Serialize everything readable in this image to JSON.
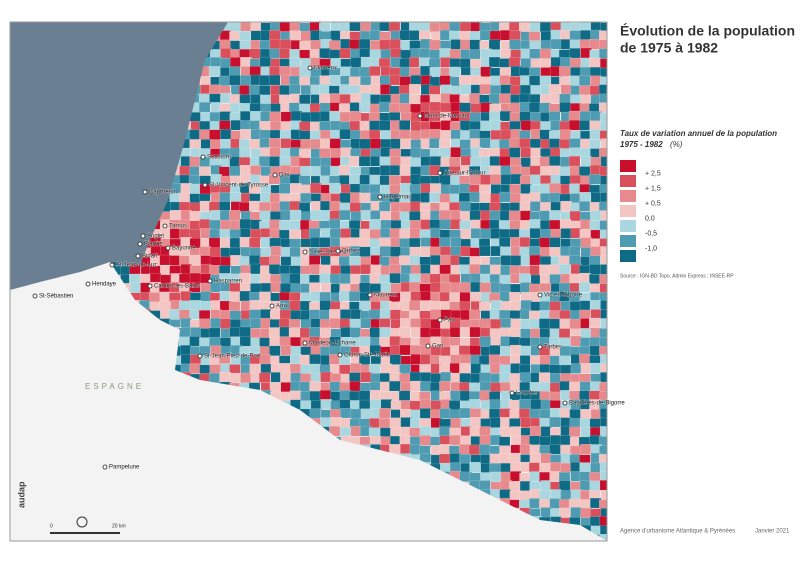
{
  "title_lines": [
    "Évolution de la population",
    "de 1975 à 1982"
  ],
  "legend": {
    "title_lines": [
      "Taux de variation annuel de la population",
      "1975 - 1982"
    ],
    "unit": "(%)",
    "colors": [
      "#c8102e",
      "#d9505c",
      "#e78a8d",
      "#f4c6c3",
      "#a9d6df",
      "#4f9bb1",
      "#0f6b85"
    ],
    "labels": [
      "+ 2,5",
      "+ 1,5",
      "+ 0,5",
      "0,0",
      "-0,5",
      "-1,0"
    ]
  },
  "source": "Source : IGN-BD Topo, Admin Express ; INSEE-RP",
  "footer": {
    "agency": "Agence d'urbanisme Atlantique & Pyrénées",
    "date": "Janvier 2021"
  },
  "scale": {
    "start": "0",
    "end": "20 km"
  },
  "logo": "audap",
  "country_label": "ESPAGNE",
  "places": [
    "Morcenx",
    "Mont-de-Marsan",
    "Soustons",
    "Capbreton",
    "St-Vincent-de-Tyrosse",
    "Dax",
    "Aire-sur-l'Adour",
    "Hagetmau",
    "Tarnos",
    "Anglet",
    "Biarritz",
    "Bayonne",
    "Bidart",
    "St-Jean-de-Luz",
    "Hendaye",
    "St-Sébastien",
    "Cambo-les-Bains",
    "Hasparren",
    "Salies-de-Béarn",
    "Orthez",
    "Artix",
    "Mourenx",
    "Vic-en-Bigorre",
    "Pau",
    "Gan",
    "Tarbes",
    "Mauléon-Licharre",
    "Oloron-Ste-Marie",
    "St-Jean-Pied-de-Port",
    "Lourdes",
    "Bagnères-de-Bigorre",
    "Pampelune"
  ]
}
